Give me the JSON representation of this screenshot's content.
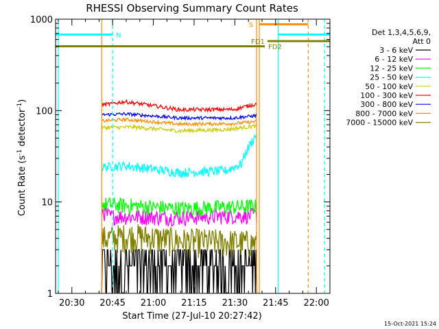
{
  "chart_data": {
    "type": "line",
    "title": "RHESSI Observing Summary Count Rates",
    "xlabel": "Start Time (27-Jul-10 20:27:42)",
    "ylabel_main": "Count Rate (s",
    "ylabel_sup1": "-1",
    "ylabel_mid": " detector",
    "ylabel_sup2": "-1",
    "ylabel_end": ")",
    "timestamp": "15-Oct-2021 15:24",
    "x_axis": {
      "range_min": [
        20,
        24
      ],
      "range_max": [
        22,
        5
      ],
      "ticks": [
        "20:30",
        "20:45",
        "21:00",
        "21:15",
        "21:30",
        "21:45",
        "22:00"
      ]
    },
    "y_axis": {
      "scale": "log",
      "range": [
        1,
        1000
      ],
      "ticks": [
        "1",
        "10",
        "100",
        "1000"
      ]
    },
    "legend": {
      "header_line1": "Det 1,3,4,5,6,9,",
      "header_line2": "Att 0",
      "placement": "right"
    },
    "series": [
      {
        "name": "3 - 6 keV",
        "color": "#000000",
        "start": [
          20,
          41
        ],
        "end": [
          21,
          38
        ],
        "profile": [
          [
            0,
            1.6
          ],
          [
            0.2,
            1.4
          ],
          [
            0.5,
            1.5
          ],
          [
            0.75,
            1.8
          ],
          [
            1,
            2.0
          ]
        ],
        "noise": 0.18
      },
      {
        "name": "6 - 12 keV",
        "color": "#ff00ff",
        "start": [
          20,
          41
        ],
        "end": [
          21,
          38
        ],
        "profile": [
          [
            0,
            8.0
          ],
          [
            0.05,
            7.0
          ],
          [
            0.5,
            6.8
          ],
          [
            1,
            7.2
          ]
        ],
        "noise": 0.05
      },
      {
        "name": "12 - 25 keV",
        "color": "#00ff00",
        "start": [
          20,
          41
        ],
        "end": [
          21,
          38
        ],
        "profile": [
          [
            0,
            9.5
          ],
          [
            0.5,
            8.5
          ],
          [
            1,
            9.0
          ]
        ],
        "noise": 0.05
      },
      {
        "name": "25 - 50 keV",
        "color": "#00ffff",
        "start": [
          20,
          41
        ],
        "end": [
          21,
          38
        ],
        "profile": [
          [
            0,
            24
          ],
          [
            0.15,
            25
          ],
          [
            0.5,
            21
          ],
          [
            0.8,
            22
          ],
          [
            0.9,
            26
          ],
          [
            1,
            55
          ]
        ],
        "noise": 0.03
      },
      {
        "name": "50 - 100 keV",
        "color": "#cccc00",
        "start": [
          20,
          41
        ],
        "end": [
          21,
          38
        ],
        "profile": [
          [
            0,
            65
          ],
          [
            0.2,
            66
          ],
          [
            0.5,
            60
          ],
          [
            0.8,
            62
          ],
          [
            1,
            68
          ]
        ],
        "noise": 0.012
      },
      {
        "name": "100 - 300 keV",
        "color": "#ff0000",
        "start": [
          20,
          41
        ],
        "end": [
          21,
          38
        ],
        "profile": [
          [
            0,
            115
          ],
          [
            0.15,
            125
          ],
          [
            0.5,
            102
          ],
          [
            0.85,
            103
          ],
          [
            1,
            118
          ]
        ],
        "noise": 0.012
      },
      {
        "name": "300 - 800 keV",
        "color": "#0000ff",
        "start": [
          20,
          41
        ],
        "end": [
          21,
          38
        ],
        "profile": [
          [
            0,
            90
          ],
          [
            0.15,
            92
          ],
          [
            0.5,
            83
          ],
          [
            0.85,
            83
          ],
          [
            1,
            88
          ]
        ],
        "noise": 0.01
      },
      {
        "name": "800 - 7000 keV",
        "color": "#ff8c00",
        "start": [
          20,
          41
        ],
        "end": [
          21,
          38
        ],
        "profile": [
          [
            0,
            77
          ],
          [
            0.15,
            80
          ],
          [
            0.5,
            71
          ],
          [
            0.85,
            72
          ],
          [
            1,
            76
          ]
        ],
        "noise": 0.01
      },
      {
        "name": "7000 - 15000 keV",
        "color": "#808000",
        "start": [
          20,
          41
        ],
        "end": [
          21,
          38
        ],
        "profile": [
          [
            0,
            4.0
          ],
          [
            0.2,
            4.3
          ],
          [
            0.5,
            3.8
          ],
          [
            1,
            3.6
          ]
        ],
        "noise": 0.09
      }
    ],
    "bars": [
      {
        "label": "N",
        "color": "#00ffff",
        "y": 680,
        "start": [
          20,
          24
        ],
        "end": [
          20,
          45
        ]
      },
      {
        "label": "",
        "color": "#00ffff",
        "y": 680,
        "start": [
          21,
          46
        ],
        "end": [
          22,
          5
        ]
      },
      {
        "label": "S",
        "color": "#ff8c00",
        "y": 880,
        "start": [
          21,
          39
        ],
        "end": [
          21,
          57
        ]
      },
      {
        "label": "FD1",
        "color": "#808000",
        "y": 575,
        "start": [
          21,
          42
        ],
        "end": [
          22,
          5
        ]
      },
      {
        "label": "FD2",
        "color": "#808000",
        "y": 505,
        "start": [
          20,
          24
        ],
        "end": [
          21,
          41
        ]
      }
    ],
    "vlines": [
      {
        "time": [
          20,
          25
        ],
        "color": "#00ffff",
        "dashed": false
      },
      {
        "time": [
          20,
          45
        ],
        "color": "#00ffff",
        "dashed": true
      },
      {
        "time": [
          20,
          41
        ],
        "color": "#ff8c00",
        "dashed": false
      },
      {
        "time": [
          21,
          38
        ],
        "color": "#ff8c00",
        "dashed": false
      },
      {
        "time": [
          21,
          39
        ],
        "color": "#ff8c00",
        "dashed": false
      },
      {
        "time": [
          21,
          46
        ],
        "color": "#00ffff",
        "dashed": false
      },
      {
        "time": [
          21,
          57
        ],
        "color": "#ff8c00",
        "dashed": true
      },
      {
        "time": [
          22,
          3
        ],
        "color": "#00ffff",
        "dashed": true
      }
    ]
  }
}
